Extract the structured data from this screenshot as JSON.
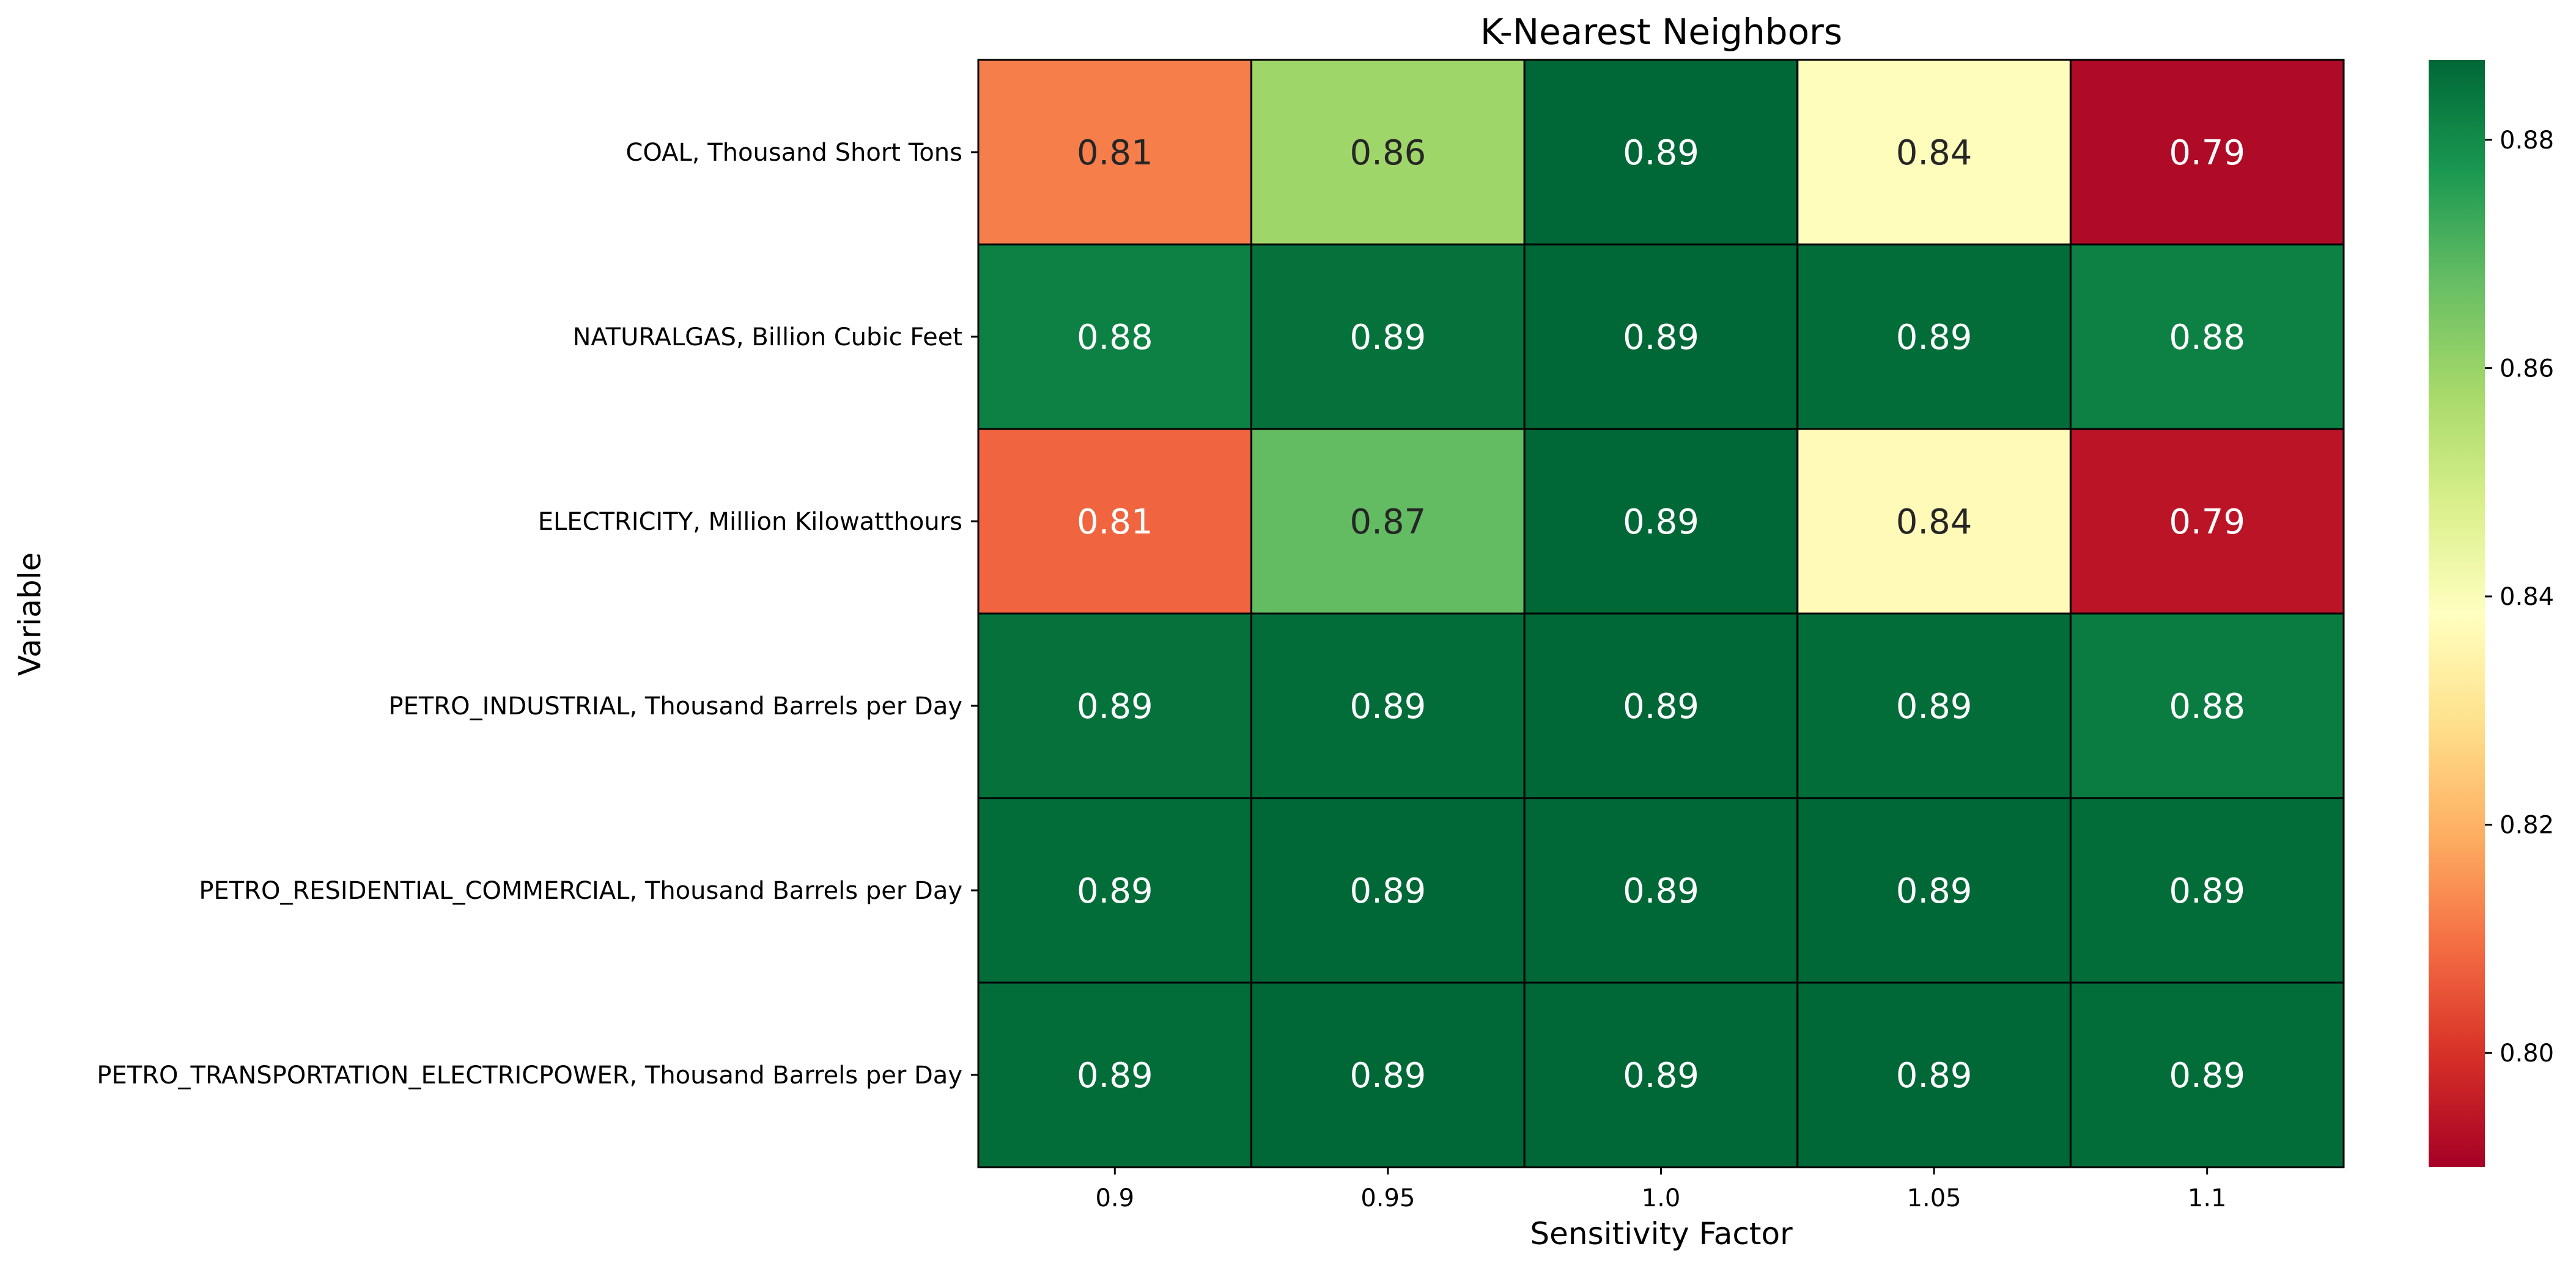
{
  "chart_data": {
    "type": "heatmap",
    "title": "K-Nearest Neighbors",
    "xlabel": "Sensitivity Factor",
    "ylabel": "Variable",
    "x": [
      "0.9",
      "0.95",
      "1.0",
      "1.05",
      "1.1"
    ],
    "y": [
      "COAL, Thousand Short Tons",
      "NATURALGAS, Billion Cubic Feet",
      "ELECTRICITY, Million Kilowatthours",
      "PETRO_INDUSTRIAL, Thousand Barrels per Day",
      "PETRO_RESIDENTIAL_COMMERCIAL, Thousand Barrels per Day",
      "PETRO_TRANSPORTATION_ELECTRICPOWER, Thousand Barrels per Day"
    ],
    "values": [
      [
        0.812,
        0.859,
        0.887,
        0.838,
        0.792
      ],
      [
        0.882,
        0.885,
        0.887,
        0.886,
        0.882
      ],
      [
        0.808,
        0.868,
        0.887,
        0.837,
        0.794
      ],
      [
        0.885,
        0.886,
        0.887,
        0.886,
        0.883
      ],
      [
        0.886,
        0.887,
        0.887,
        0.887,
        0.886
      ],
      [
        0.886,
        0.887,
        0.887,
        0.887,
        0.886
      ]
    ],
    "labels": [
      [
        "0.81",
        "0.86",
        "0.89",
        "0.84",
        "0.79"
      ],
      [
        "0.88",
        "0.89",
        "0.89",
        "0.89",
        "0.88"
      ],
      [
        "0.81",
        "0.87",
        "0.89",
        "0.84",
        "0.79"
      ],
      [
        "0.89",
        "0.89",
        "0.89",
        "0.89",
        "0.88"
      ],
      [
        "0.89",
        "0.89",
        "0.89",
        "0.89",
        "0.89"
      ],
      [
        "0.89",
        "0.89",
        "0.89",
        "0.89",
        "0.89"
      ]
    ],
    "colormap": "RdYlGn",
    "vmin": 0.79,
    "vmax": 0.887,
    "colorbar_ticks": [
      "0.80",
      "0.82",
      "0.84",
      "0.86",
      "0.88"
    ],
    "grid_line_color": "#000000",
    "legend": "colorbar-right"
  }
}
